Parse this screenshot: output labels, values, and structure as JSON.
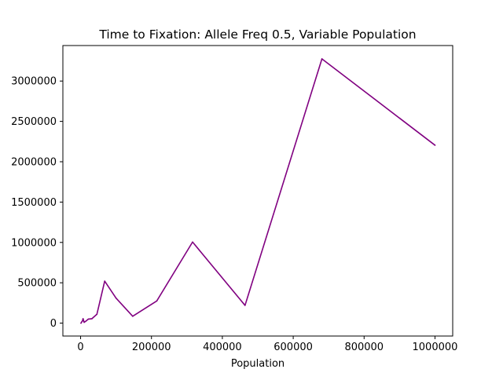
{
  "chart_data": {
    "type": "line",
    "title": "Time to Fixation: Allele Freq 0.5, Variable Population",
    "xlabel": "Population",
    "ylabel": "",
    "xlim": [
      -50000,
      1050000
    ],
    "ylim": [
      -160000,
      3440000
    ],
    "xticks": [
      {
        "value": 0,
        "label": "0"
      },
      {
        "value": 200000,
        "label": "200000"
      },
      {
        "value": 400000,
        "label": "400000"
      },
      {
        "value": 600000,
        "label": "600000"
      },
      {
        "value": 800000,
        "label": "800000"
      },
      {
        "value": 1000000,
        "label": "1000000"
      }
    ],
    "yticks": [
      {
        "value": 0,
        "label": "0"
      },
      {
        "value": 500000,
        "label": "500000"
      },
      {
        "value": 1000000,
        "label": "1000000"
      },
      {
        "value": 1500000,
        "label": "1500000"
      },
      {
        "value": 2000000,
        "label": "2000000"
      },
      {
        "value": 2500000,
        "label": "2500000"
      },
      {
        "value": 3000000,
        "label": "3000000"
      }
    ],
    "grid": false,
    "series": [
      {
        "color": "#800080",
        "x": [
          1000,
          2000,
          3000,
          5000,
          7000,
          10000,
          15000,
          22000,
          32000,
          46000,
          68000,
          100000,
          147000,
          215000,
          316000,
          464000,
          681000,
          1000000
        ],
        "y": [
          0,
          5000,
          15000,
          25000,
          55000,
          10000,
          25000,
          50000,
          55000,
          110000,
          520000,
          310000,
          85000,
          275000,
          1005000,
          220000,
          3275000,
          2205000
        ]
      }
    ]
  }
}
